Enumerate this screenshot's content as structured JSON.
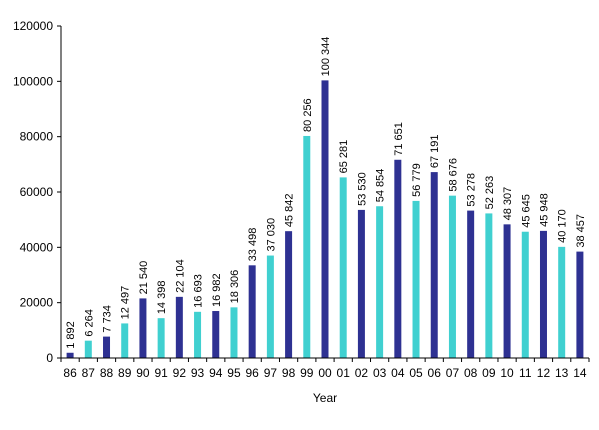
{
  "chart_data": {
    "type": "bar",
    "xlabel": "Year",
    "ylabel": "",
    "ylim": [
      0,
      120000
    ],
    "yticks": [
      0,
      20000,
      40000,
      60000,
      80000,
      100000,
      120000
    ],
    "grid": false,
    "legend": "none",
    "categories": [
      "86",
      "87",
      "88",
      "89",
      "90",
      "91",
      "92",
      "93",
      "94",
      "95",
      "96",
      "97",
      "98",
      "99",
      "00",
      "01",
      "02",
      "03",
      "04",
      "05",
      "06",
      "07",
      "08",
      "09",
      "10",
      "11",
      "12",
      "13",
      "14"
    ],
    "values": [
      1892,
      6264,
      7734,
      12497,
      21540,
      14398,
      22104,
      16693,
      16982,
      18306,
      33498,
      37030,
      45842,
      80256,
      100344,
      65281,
      53530,
      54854,
      71651,
      56779,
      67191,
      58676,
      53278,
      52263,
      48307,
      45645,
      45948,
      40170,
      38457
    ],
    "data_labels": [
      "1 892",
      "6 264",
      "7 734",
      "12 497",
      "21 540",
      "14 398",
      "22 104",
      "16 693",
      "16 982",
      "18 306",
      "33 498",
      "37 030",
      "45 842",
      "80 256",
      "100 344",
      "65 281",
      "53 530",
      "54 854",
      "71 651",
      "56 779",
      "67 191",
      "58 676",
      "53 278",
      "52 263",
      "48 307",
      "45 645",
      "45 948",
      "40 170",
      "38 457"
    ],
    "bar_colors": [
      "#2e3192",
      "#40d0d0",
      "#2e3192",
      "#40d0d0",
      "#2e3192",
      "#40d0d0",
      "#2e3192",
      "#40d0d0",
      "#2e3192",
      "#40d0d0",
      "#2e3192",
      "#40d0d0",
      "#2e3192",
      "#40d0d0",
      "#2e3192",
      "#40d0d0",
      "#2e3192",
      "#40d0d0",
      "#2e3192",
      "#40d0d0",
      "#2e3192",
      "#40d0d0",
      "#2e3192",
      "#40d0d0",
      "#2e3192",
      "#40d0d0",
      "#2e3192",
      "#40d0d0",
      "#2e3192"
    ],
    "axis_color": "#000000"
  }
}
